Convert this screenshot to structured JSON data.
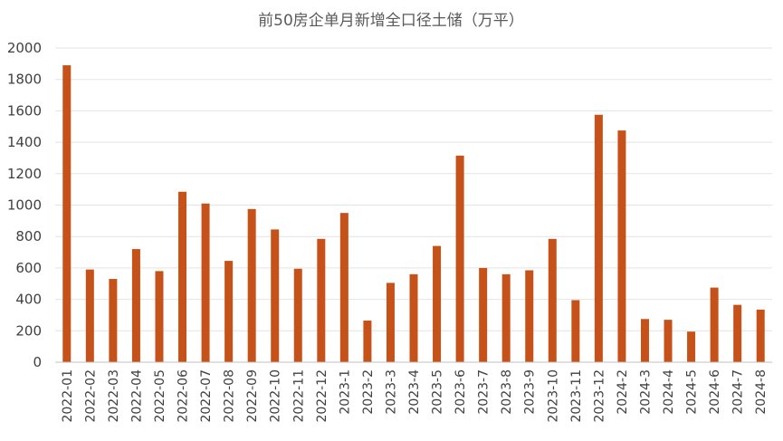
{
  "chart_data": {
    "type": "bar",
    "title": "前50房企单月新增全口径土储（万平）",
    "xlabel": "",
    "ylabel": "",
    "ylim": [
      0,
      2000
    ],
    "yticks": [
      0,
      200,
      400,
      600,
      800,
      1000,
      1200,
      1400,
      1600,
      1800,
      2000
    ],
    "grid": true,
    "legend": "none",
    "bar_color": "#c65119",
    "categories": [
      "2022-01",
      "2022-02",
      "2022-03",
      "2022-04",
      "2022-05",
      "2022-06",
      "2022-07",
      "2022-08",
      "2022-09",
      "2022-10",
      "2022-11",
      "2022-12",
      "2023-1",
      "2023-2",
      "2023-3",
      "2023-4",
      "2023-5",
      "2023-6",
      "2023-7",
      "2023-8",
      "2023-9",
      "2023-10",
      "2023-11",
      "2023-12",
      "2024-2",
      "2024-3",
      "2024-4",
      "2024-5",
      "2024-6",
      "2024-7",
      "2024-8"
    ],
    "values": [
      1890,
      590,
      530,
      720,
      580,
      1085,
      1010,
      645,
      975,
      845,
      595,
      785,
      950,
      265,
      505,
      560,
      740,
      1315,
      600,
      560,
      585,
      785,
      395,
      1575,
      1475,
      275,
      270,
      195,
      475,
      365,
      335
    ]
  }
}
